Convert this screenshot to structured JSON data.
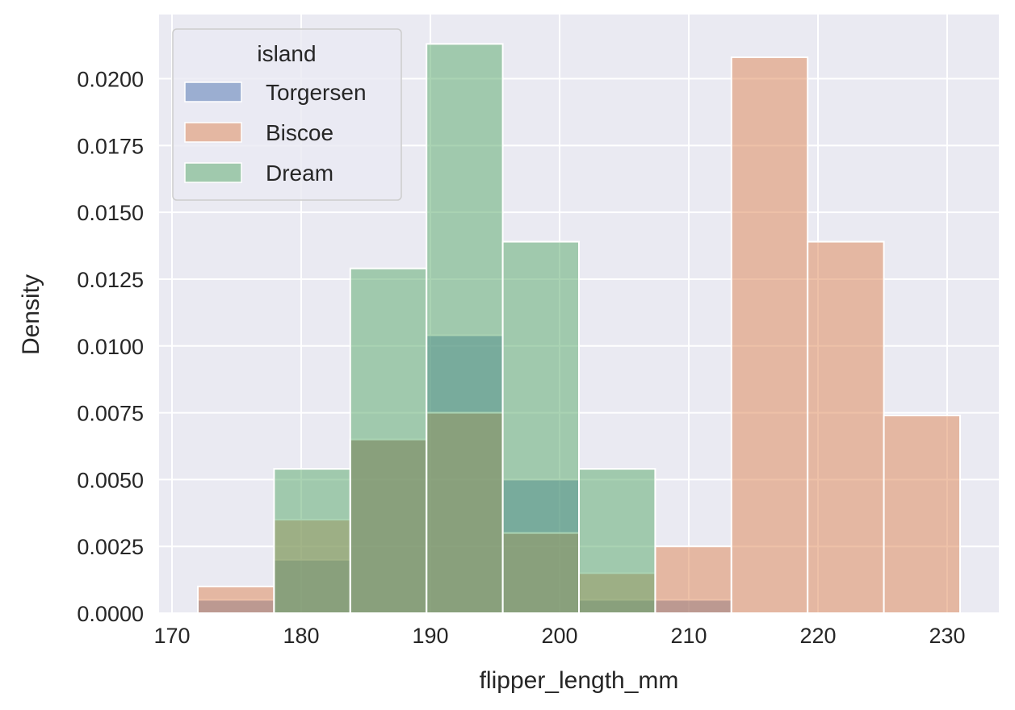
{
  "chart_data": {
    "type": "bar",
    "subtype": "histogram-overlaid",
    "title": "",
    "xlabel": "flipper_length_mm",
    "ylabel": "Density",
    "xlim": [
      169,
      234
    ],
    "ylim": [
      0,
      0.0224
    ],
    "xticks": [
      170,
      180,
      190,
      200,
      210,
      220,
      230
    ],
    "xtick_labels": [
      "170",
      "180",
      "190",
      "200",
      "210",
      "220",
      "230"
    ],
    "yticks": [
      0,
      0.0025,
      0.005,
      0.0075,
      0.01,
      0.0125,
      0.015,
      0.0175,
      0.02
    ],
    "ytick_labels": [
      "0.0000",
      "0.0025",
      "0.0050",
      "0.0075",
      "0.0100",
      "0.0125",
      "0.0150",
      "0.0175",
      "0.0200"
    ],
    "grid": true,
    "bin_edges": [
      172,
      177.9,
      183.8,
      189.7,
      195.6,
      201.5,
      207.4,
      213.3,
      219.2,
      225.1,
      231
    ],
    "legend": {
      "title": "island",
      "placement": "top-left"
    },
    "series": [
      {
        "name": "Torgersen",
        "color": "#4c72b0",
        "values": [
          0.0005,
          0.002,
          0.0065,
          0.0104,
          0.005,
          0.0005,
          0.0005,
          0,
          0,
          0
        ]
      },
      {
        "name": "Biscoe",
        "color": "#dd8452",
        "values": [
          0.001,
          0.0035,
          0.0065,
          0.0075,
          0.003,
          0.0015,
          0.0025,
          0.0208,
          0.0139,
          0.0074
        ]
      },
      {
        "name": "Dream",
        "color": "#55a868",
        "values": [
          0,
          0.0054,
          0.0129,
          0.0213,
          0.0139,
          0.0054,
          0,
          0,
          0,
          0
        ]
      }
    ]
  }
}
